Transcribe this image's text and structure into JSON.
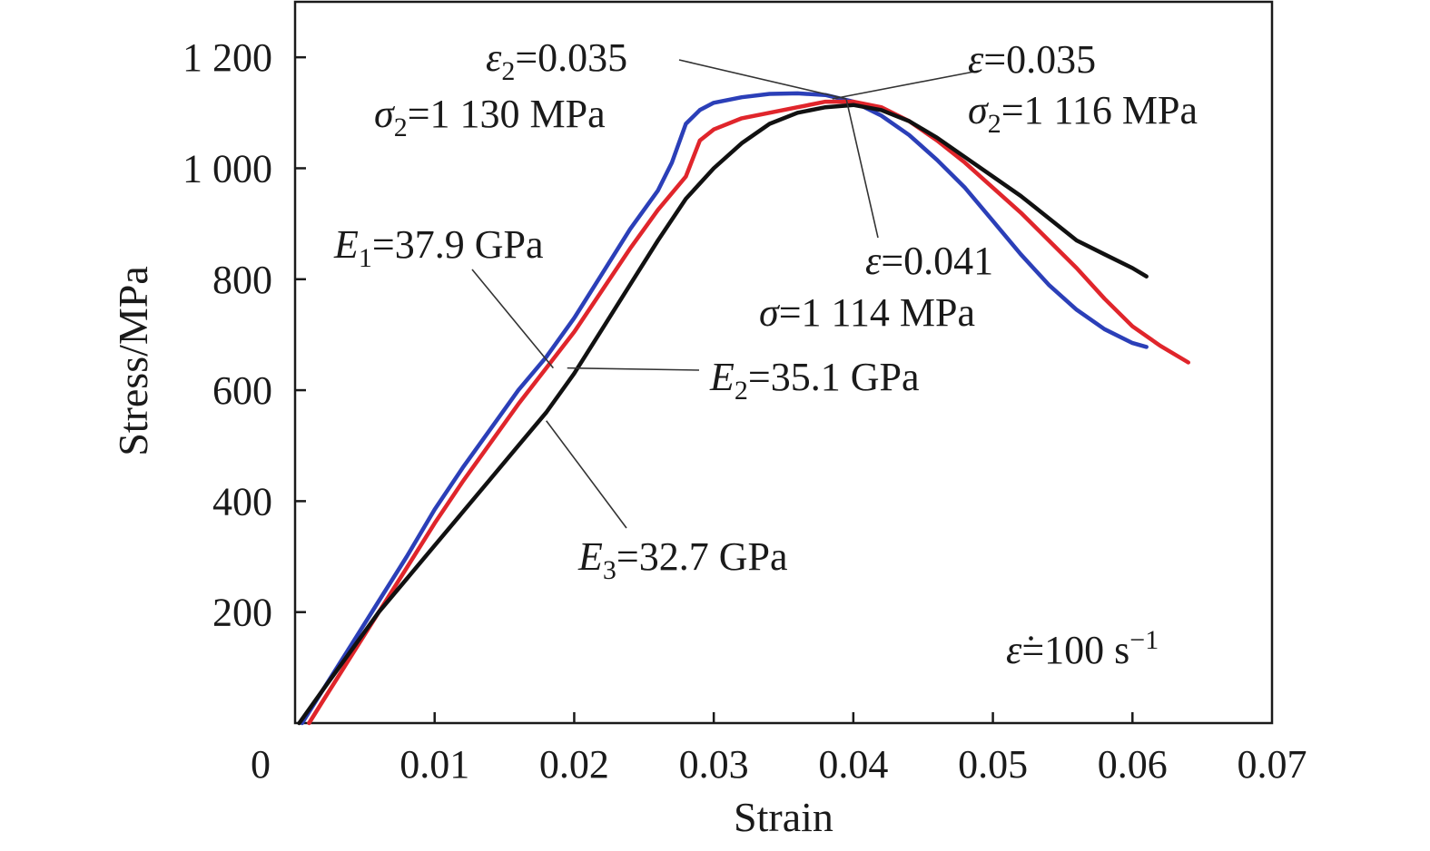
{
  "chart_data": {
    "type": "line",
    "xlabel": "Strain",
    "ylabel": "Stress/MPa",
    "xlim": [
      0,
      0.07
    ],
    "ylim": [
      0,
      1300
    ],
    "x_ticks": [
      "0",
      "0.01",
      "0.02",
      "0.03",
      "0.04",
      "0.05",
      "0.06",
      "0.07"
    ],
    "y_ticks": [
      "200",
      "400",
      "600",
      "800",
      "1 000",
      "1 200"
    ],
    "series": [
      {
        "color": "#2b3fb8",
        "points": [
          [
            0.0005,
            0
          ],
          [
            0.002,
            60
          ],
          [
            0.004,
            140
          ],
          [
            0.006,
            220
          ],
          [
            0.008,
            300
          ],
          [
            0.01,
            385
          ],
          [
            0.012,
            460
          ],
          [
            0.014,
            530
          ],
          [
            0.016,
            600
          ],
          [
            0.018,
            660
          ],
          [
            0.02,
            730
          ],
          [
            0.022,
            810
          ],
          [
            0.024,
            890
          ],
          [
            0.026,
            960
          ],
          [
            0.027,
            1010
          ],
          [
            0.028,
            1080
          ],
          [
            0.029,
            1105
          ],
          [
            0.03,
            1118
          ],
          [
            0.032,
            1128
          ],
          [
            0.034,
            1134
          ],
          [
            0.036,
            1135
          ],
          [
            0.038,
            1132
          ],
          [
            0.04,
            1120
          ],
          [
            0.042,
            1095
          ],
          [
            0.044,
            1060
          ],
          [
            0.046,
            1015
          ],
          [
            0.048,
            965
          ],
          [
            0.05,
            905
          ],
          [
            0.052,
            845
          ],
          [
            0.054,
            790
          ],
          [
            0.056,
            745
          ],
          [
            0.058,
            710
          ],
          [
            0.06,
            685
          ],
          [
            0.061,
            678
          ]
        ]
      },
      {
        "color": "#e0252b",
        "points": [
          [
            0.001,
            0
          ],
          [
            0.002,
            40
          ],
          [
            0.004,
            120
          ],
          [
            0.006,
            200
          ],
          [
            0.008,
            280
          ],
          [
            0.01,
            360
          ],
          [
            0.012,
            435
          ],
          [
            0.014,
            505
          ],
          [
            0.016,
            575
          ],
          [
            0.018,
            640
          ],
          [
            0.02,
            705
          ],
          [
            0.022,
            780
          ],
          [
            0.024,
            855
          ],
          [
            0.026,
            925
          ],
          [
            0.028,
            985
          ],
          [
            0.029,
            1050
          ],
          [
            0.03,
            1070
          ],
          [
            0.032,
            1090
          ],
          [
            0.034,
            1100
          ],
          [
            0.036,
            1110
          ],
          [
            0.038,
            1120
          ],
          [
            0.04,
            1120
          ],
          [
            0.042,
            1110
          ],
          [
            0.044,
            1085
          ],
          [
            0.046,
            1050
          ],
          [
            0.048,
            1010
          ],
          [
            0.05,
            965
          ],
          [
            0.052,
            920
          ],
          [
            0.054,
            870
          ],
          [
            0.056,
            820
          ],
          [
            0.058,
            765
          ],
          [
            0.06,
            715
          ],
          [
            0.062,
            680
          ],
          [
            0.064,
            650
          ]
        ]
      },
      {
        "color": "#111111",
        "points": [
          [
            0.0003,
            0
          ],
          [
            0.002,
            60
          ],
          [
            0.004,
            130
          ],
          [
            0.006,
            200
          ],
          [
            0.008,
            260
          ],
          [
            0.01,
            320
          ],
          [
            0.012,
            380
          ],
          [
            0.014,
            440
          ],
          [
            0.016,
            500
          ],
          [
            0.018,
            560
          ],
          [
            0.02,
            630
          ],
          [
            0.022,
            710
          ],
          [
            0.024,
            790
          ],
          [
            0.026,
            870
          ],
          [
            0.028,
            945
          ],
          [
            0.03,
            1000
          ],
          [
            0.032,
            1045
          ],
          [
            0.034,
            1080
          ],
          [
            0.036,
            1100
          ],
          [
            0.038,
            1110
          ],
          [
            0.04,
            1114
          ],
          [
            0.042,
            1105
          ],
          [
            0.044,
            1085
          ],
          [
            0.046,
            1055
          ],
          [
            0.048,
            1020
          ],
          [
            0.05,
            985
          ],
          [
            0.052,
            950
          ],
          [
            0.054,
            910
          ],
          [
            0.056,
            870
          ],
          [
            0.058,
            845
          ],
          [
            0.06,
            820
          ],
          [
            0.061,
            805
          ]
        ]
      }
    ],
    "annotations": {
      "e1": {
        "main": "E",
        "sub": "1",
        "rest": "=37.9 GPa"
      },
      "e2": {
        "main": "E",
        "sub": "2",
        "rest": "=35.1 GPa"
      },
      "e3": {
        "main": "E",
        "sub": "3",
        "rest": "=32.7 GPa"
      },
      "peak_blue_strain": {
        "main": "ε",
        "sub": "2",
        "rest": "=0.035"
      },
      "peak_blue_stress": {
        "main": "σ",
        "sub": "2",
        "rest": "=1 130 MPa"
      },
      "peak_red_strain": {
        "main": "ε",
        "rest": "=0.035"
      },
      "peak_red_stress": {
        "main": "σ",
        "sub": "2",
        "rest": "=1 116 MPa"
      },
      "peak_black_strain": {
        "main": "ε",
        "rest": "=0.041"
      },
      "peak_black_stress": {
        "main": "σ",
        "rest": "=1 114 MPa"
      },
      "strain_rate": {
        "main": "ε̇",
        "rest": "=100 s",
        "sup": "−1"
      }
    }
  }
}
